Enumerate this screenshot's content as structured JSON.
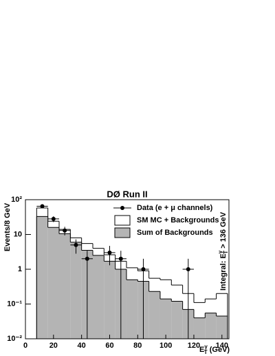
{
  "chart_data": {
    "type": "histogram",
    "title": "DØ Run II",
    "y_label": "Events/8 GeV",
    "x_label": {
      "main": "E",
      "sub": "T",
      "sup": "γ",
      "unit": " (GeV)"
    },
    "annotation": {
      "main": "Integral: E",
      "sub": "T",
      "sup": "γ",
      "rest": " > 136 GeV"
    },
    "log_y": true,
    "bins": [
      8,
      16,
      24,
      32,
      40,
      48,
      56,
      64,
      72,
      80,
      88,
      96,
      104,
      112,
      120,
      128,
      136,
      144
    ],
    "series": [
      {
        "name": "SM MC + Backgrounds",
        "color": "#ffffff",
        "values": [
          58,
          24,
          14,
          8,
          5.5,
          4,
          2.6,
          1.7,
          1.1,
          0.9,
          0.55,
          0.5,
          0.35,
          0.2,
          0.11,
          0.14,
          0.2
        ]
      },
      {
        "name": "Sum of Backgrounds",
        "color": "#b4b4b4",
        "values": [
          33,
          16,
          10.5,
          6,
          3.5,
          2.5,
          1.7,
          1,
          0.5,
          0.45,
          0.23,
          0.14,
          0.12,
          0.07,
          0.04,
          0.055,
          0.045
        ]
      }
    ],
    "data": {
      "name": "Data (e + μ channels)",
      "color": "#000000",
      "x": [
        12,
        20,
        28,
        36,
        44,
        60,
        68,
        84,
        116
      ],
      "values": [
        65,
        28,
        13,
        5,
        2,
        3,
        2,
        1,
        1
      ],
      "yerr_low": [
        8,
        5.3,
        3.6,
        2.2,
        2,
        1.7,
        2,
        1,
        1
      ],
      "yerr_high": [
        8,
        5.3,
        3.6,
        2.2,
        1.4,
        1.7,
        1.4,
        1,
        1
      ],
      "xerr": 4
    },
    "xlim": [
      0,
      145
    ],
    "ylim": [
      0.01,
      100
    ],
    "xticks": [
      0,
      20,
      40,
      60,
      80,
      100,
      120,
      140
    ],
    "yticks": [
      {
        "value": 0.01,
        "label": "10⁻²"
      },
      {
        "value": 0.1,
        "label": "10⁻¹"
      },
      1,
      10,
      {
        "value": 100,
        "label": "10²"
      }
    ]
  }
}
